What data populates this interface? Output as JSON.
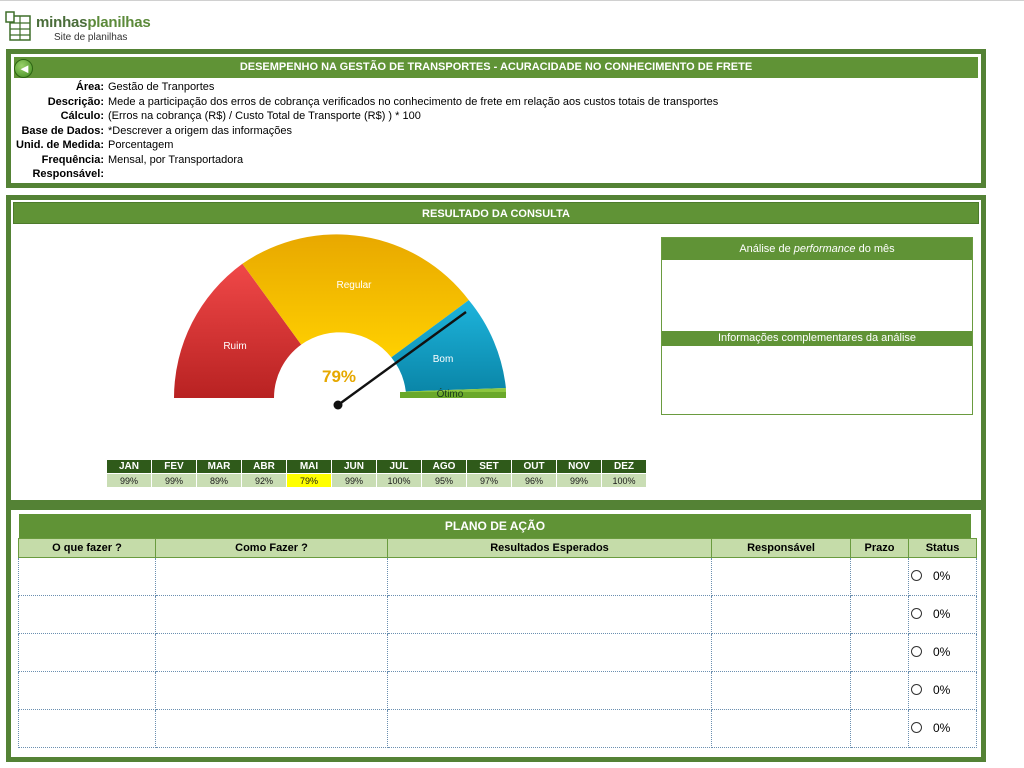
{
  "brand": {
    "name_part1": "minhas",
    "name_part2": "planilhas",
    "tagline": "Site de planilhas"
  },
  "header": {
    "title": "DESEMPENHO NA GESTÃO DE TRANSPORTES - ACURACIDADE NO CONHECIMENTO DE FRETE"
  },
  "info": [
    {
      "label": "Área:",
      "value": "Gestão de Tranportes"
    },
    {
      "label": "Descrição:",
      "value": "Mede a participação dos erros de cobrança verificados no conhecimento de frete em relação aos custos totais de transportes"
    },
    {
      "label": "Cálculo:",
      "value": "(Erros na cobrança (R$) / Custo Total de Transporte (R$) ) * 100"
    },
    {
      "label": "Base de Dados:",
      "value": "*Descrever a origem das informações"
    },
    {
      "label": "Unid. de Medida:",
      "value": "Porcentagem"
    },
    {
      "label": "Frequência:",
      "value": "Mensal, por Transportadora"
    },
    {
      "label": "Responsável:",
      "value": ""
    }
  ],
  "result": {
    "title": "RESULTADO DA CONSULTA",
    "gauge": {
      "value_label": "79%",
      "value": 79,
      "segments": [
        {
          "label": "Ruim",
          "color": "#e03a3a"
        },
        {
          "label": "Regular",
          "color": "#f0b800"
        },
        {
          "label": "Bom",
          "color": "#1aa0c8"
        },
        {
          "label": "Ótimo",
          "color": "#8cc63f"
        }
      ]
    },
    "analysis": {
      "performance_prefix": "Análise de ",
      "performance_em": "performance",
      "performance_suffix": " do mês",
      "complementary": "Informações complementares da análise"
    },
    "months": [
      {
        "m": "JAN",
        "v": "99%"
      },
      {
        "m": "FEV",
        "v": "99%"
      },
      {
        "m": "MAR",
        "v": "89%"
      },
      {
        "m": "ABR",
        "v": "92%"
      },
      {
        "m": "MAI",
        "v": "79%",
        "highlight": true
      },
      {
        "m": "JUN",
        "v": "99%"
      },
      {
        "m": "JUL",
        "v": "100%"
      },
      {
        "m": "AGO",
        "v": "95%"
      },
      {
        "m": "SET",
        "v": "97%"
      },
      {
        "m": "OUT",
        "v": "96%"
      },
      {
        "m": "NOV",
        "v": "99%"
      },
      {
        "m": "DEZ",
        "v": "100%"
      }
    ]
  },
  "plan": {
    "title": "PLANO DE AÇÃO",
    "columns": [
      "O que fazer ?",
      "Como Fazer ?",
      "Resultados Esperados",
      "Responsável",
      "Prazo",
      "Status"
    ],
    "rows": [
      {
        "status": "0%"
      },
      {
        "status": "0%"
      },
      {
        "status": "0%"
      },
      {
        "status": "0%"
      },
      {
        "status": "0%"
      }
    ]
  }
}
